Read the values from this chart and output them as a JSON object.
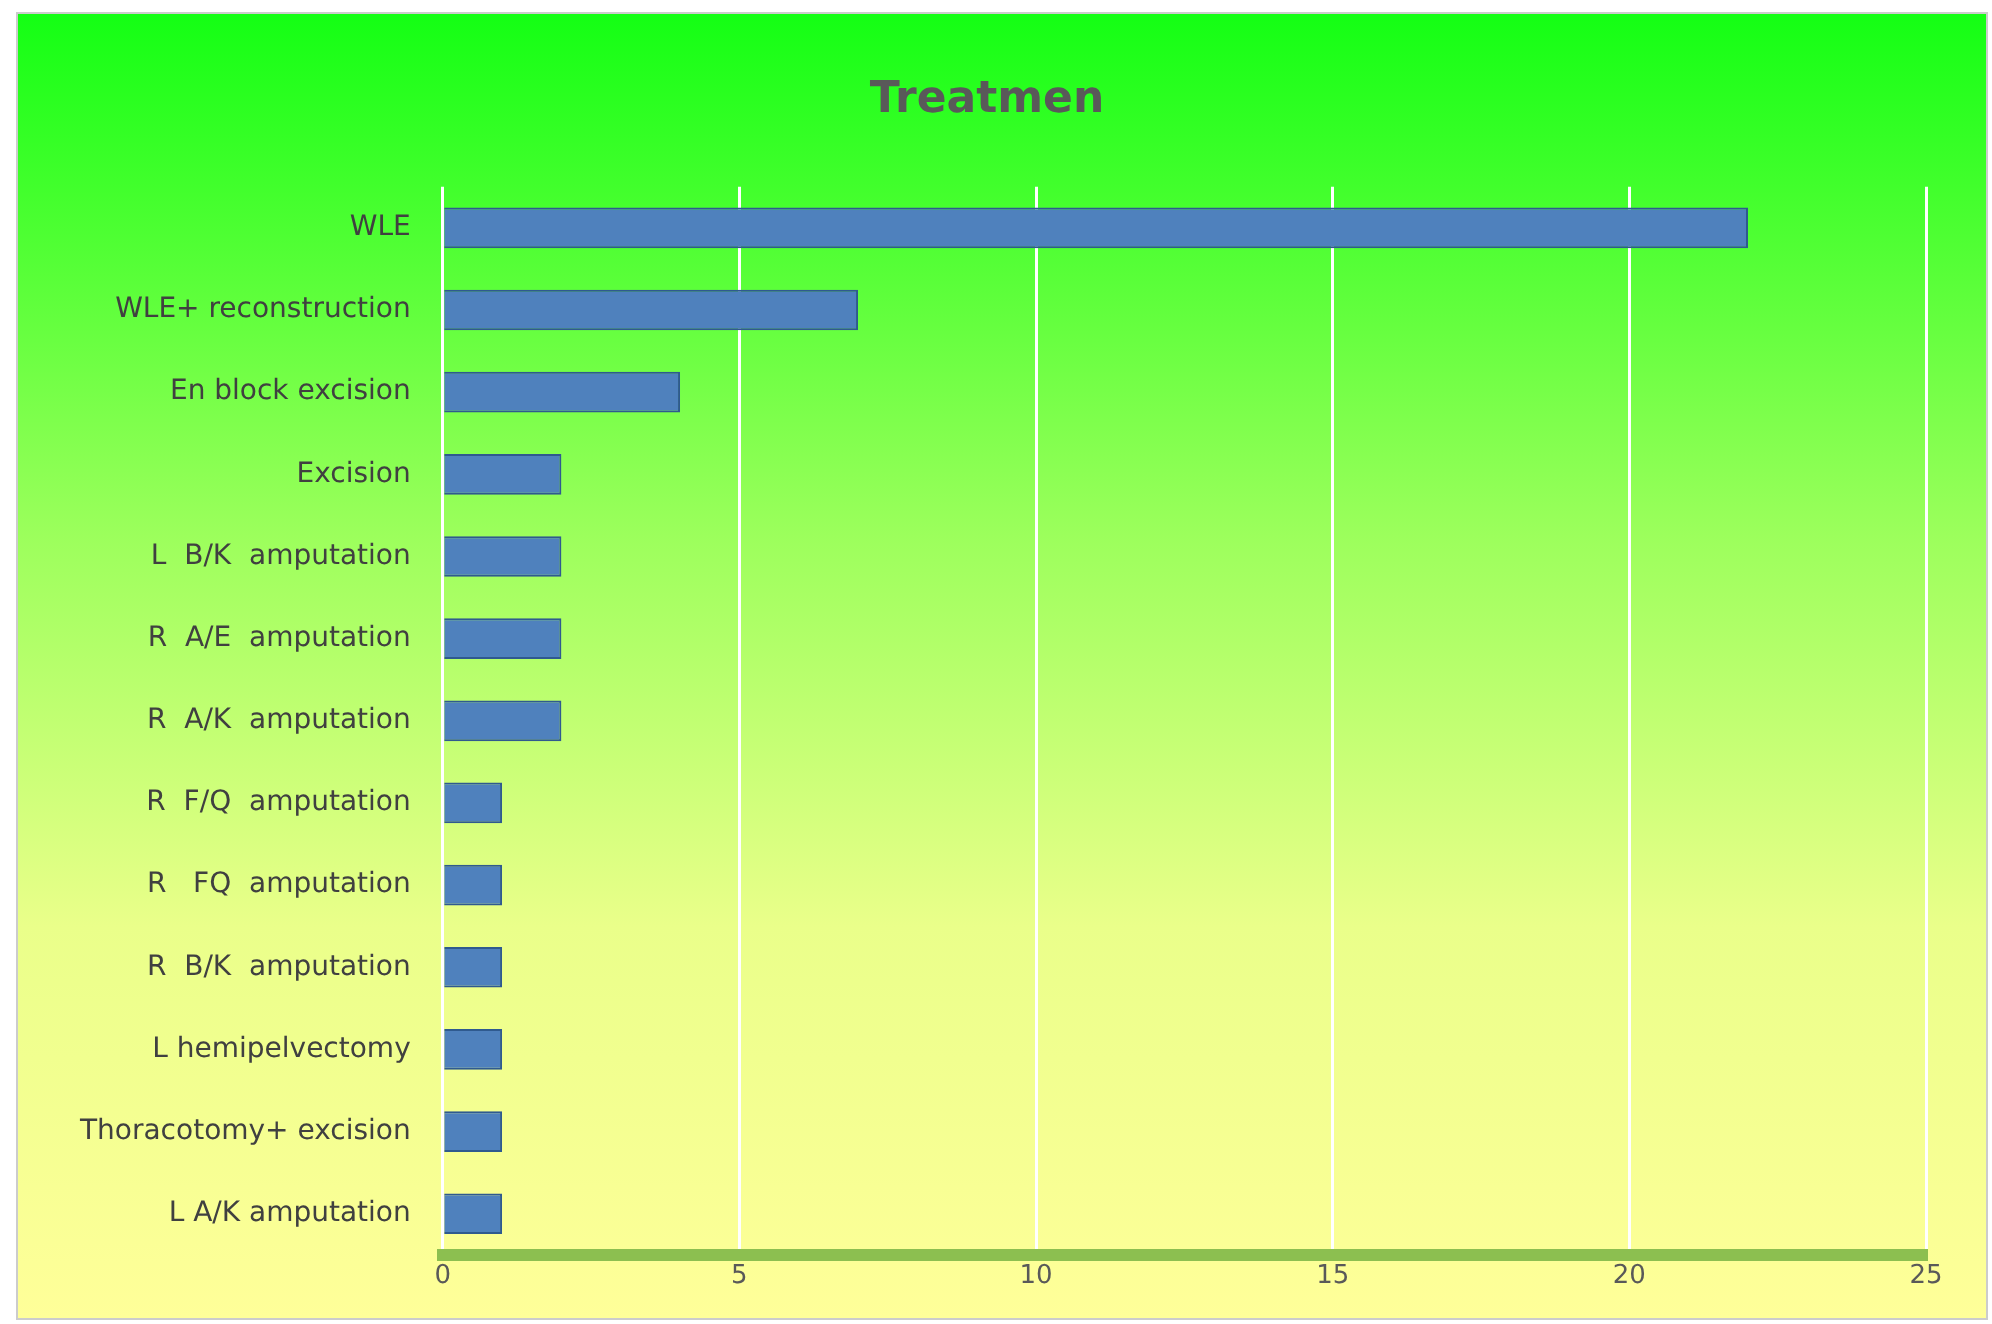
{
  "chart_data": {
    "type": "bar",
    "orientation": "horizontal",
    "title": "Treatmen",
    "categories": [
      "WLE",
      "WLE+ reconstruction",
      "En block excision",
      "Excision",
      "L  B/K  amputation",
      "R  A/E  amputation",
      "R  A/K  amputation",
      "R  F/Q  amputation",
      "R   FQ  amputation",
      "R  B/K  amputation",
      "L hemipelvectomy",
      "Thoracotomy+ excision",
      "L A/K amputation"
    ],
    "values": [
      22,
      7,
      4,
      2,
      2,
      2,
      2,
      1,
      1,
      1,
      1,
      1,
      1
    ],
    "color": "#4f81bd",
    "xlim": [
      0,
      25
    ],
    "xticks": [
      0,
      5,
      10,
      15,
      20,
      25
    ],
    "grid": "x"
  }
}
